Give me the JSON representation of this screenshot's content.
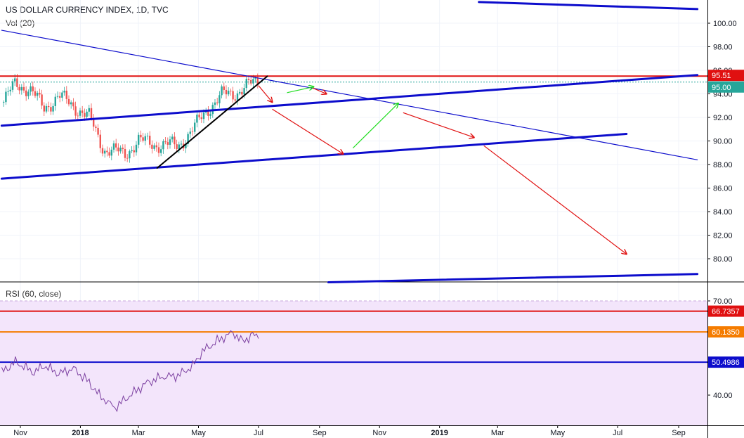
{
  "header": {
    "title": "US DOLLAR CURRENCY INDEX, 1D, TVC",
    "volume_label": "Vol (20)",
    "rsi_label": "RSI (60, close)"
  },
  "colors": {
    "up_candle": "#26a69a",
    "down_candle": "#ef5350",
    "blue_line": "#0d0dcc",
    "red_line": "#e01010",
    "orange_line": "#f57c00",
    "green_arrow": "#22dd22",
    "rsi_line": "#7b3fa0",
    "rsi_fill": "#f3e5fb"
  },
  "chart_data": [
    {
      "type": "candlestick",
      "title": "US DOLLAR CURRENCY INDEX, 1D, TVC",
      "x_axis_ticks": [
        "Nov",
        "2018",
        "Mar",
        "May",
        "Jul",
        "Sep",
        "Nov",
        "2019",
        "Mar",
        "May",
        "Jul",
        "Sep"
      ],
      "y_axis_ticks": [
        80.0,
        82.0,
        84.0,
        86.0,
        88.0,
        90.0,
        92.0,
        94.0,
        96.0,
        98.0,
        100.0
      ],
      "y_range": [
        78.0,
        102.0
      ],
      "price_labels": [
        {
          "value": "95.51",
          "color": "#e01010"
        },
        {
          "value": "95.00",
          "color": "#26a69a"
        }
      ],
      "series_close_approx": [
        {
          "date": "2017-10-15",
          "close": 93.3
        },
        {
          "date": "2017-10-27",
          "close": 94.9
        },
        {
          "date": "2017-11-10",
          "close": 94.4
        },
        {
          "date": "2017-11-25",
          "close": 92.8
        },
        {
          "date": "2017-12-10",
          "close": 93.8
        },
        {
          "date": "2017-12-25",
          "close": 93.0
        },
        {
          "date": "2018-01-10",
          "close": 92.0
        },
        {
          "date": "2018-01-25",
          "close": 89.3
        },
        {
          "date": "2018-02-15",
          "close": 88.9
        },
        {
          "date": "2018-03-01",
          "close": 90.0
        },
        {
          "date": "2018-03-20",
          "close": 89.7
        },
        {
          "date": "2018-04-10",
          "close": 89.6
        },
        {
          "date": "2018-04-25",
          "close": 90.9
        },
        {
          "date": "2018-05-10",
          "close": 92.7
        },
        {
          "date": "2018-05-25",
          "close": 93.9
        },
        {
          "date": "2018-06-05",
          "close": 94.0
        },
        {
          "date": "2018-06-20",
          "close": 94.7
        },
        {
          "date": "2018-07-01",
          "close": 95.0
        }
      ],
      "annotations": {
        "horizontal_lines": [
          {
            "value": 95.51,
            "color": "#e01010"
          },
          {
            "value": 95.0,
            "style": "dotted",
            "color": "#26a69a"
          }
        ],
        "trend_lines": [
          {
            "from": {
              "date": "2017-10-13",
              "value": 99.4
            },
            "to": {
              "date": "2019-09-20",
              "value": 88.4
            },
            "color": "#0d0dcc",
            "weight": "thin"
          },
          {
            "from": {
              "date": "2017-10-13",
              "value": 91.3
            },
            "to": {
              "date": "2019-09-20",
              "value": 95.6
            },
            "color": "#0d0dcc",
            "weight": "thick"
          },
          {
            "from": {
              "date": "2017-10-13",
              "value": 86.8
            },
            "to": {
              "date": "2019-07-10",
              "value": 90.6
            },
            "color": "#0d0dcc",
            "weight": "thick"
          },
          {
            "from": {
              "date": "2019-02-10",
              "value": 101.8
            },
            "to": {
              "date": "2019-09-20",
              "value": 101.2
            },
            "color": "#0d0dcc",
            "weight": "thick"
          },
          {
            "from": {
              "date": "2018-09-10",
              "value": 78.0
            },
            "to": {
              "date": "2019-09-20",
              "value": 78.7
            },
            "color": "#0d0dcc",
            "weight": "thick"
          },
          {
            "from": {
              "date": "2018-03-20",
              "value": 87.7
            },
            "to": {
              "date": "2018-07-10",
              "value": 95.5
            },
            "color": "#000000",
            "weight": "medium"
          }
        ],
        "arrows": [
          {
            "from": {
              "date": "2018-07-01",
              "value": 94.7
            },
            "to": {
              "date": "2018-07-15",
              "value": 93.3
            },
            "color": "#e01010"
          },
          {
            "from": {
              "date": "2018-07-30",
              "value": 94.1
            },
            "to": {
              "date": "2018-08-26",
              "value": 94.6
            },
            "color": "#22dd22"
          },
          {
            "from": {
              "date": "2018-08-25",
              "value": 94.5
            },
            "to": {
              "date": "2018-09-08",
              "value": 94.0
            },
            "color": "#e01010"
          },
          {
            "from": {
              "date": "2018-07-15",
              "value": 92.7
            },
            "to": {
              "date": "2018-09-25",
              "value": 88.9
            },
            "color": "#e01010"
          },
          {
            "from": {
              "date": "2018-10-05",
              "value": 89.4
            },
            "to": {
              "date": "2018-11-20",
              "value": 93.2
            },
            "color": "#22dd22"
          },
          {
            "from": {
              "date": "2018-11-25",
              "value": 92.4
            },
            "to": {
              "date": "2019-02-05",
              "value": 90.3
            },
            "color": "#e01010"
          },
          {
            "from": {
              "date": "2019-02-15",
              "value": 89.6
            },
            "to": {
              "date": "2019-07-10",
              "value": 80.4
            },
            "color": "#e01010"
          }
        ]
      }
    },
    {
      "type": "line",
      "title": "RSI (60, close)",
      "y_axis_ticks": [
        40.0,
        70.0
      ],
      "y_range": [
        32.0,
        71.0
      ],
      "value_labels": [
        {
          "value": "66.7357",
          "color": "#e01010"
        },
        {
          "value": "60.1350",
          "color": "#f57c00"
        },
        {
          "value": "50.4986",
          "color": "#0d0dcc"
        }
      ],
      "levels": [
        66.7357,
        60.135,
        50.4986
      ],
      "series_approx": [
        {
          "date": "2017-10-13",
          "value": 47.3
        },
        {
          "date": "2017-10-27",
          "value": 50.6
        },
        {
          "date": "2017-11-15",
          "value": 47.2
        },
        {
          "date": "2017-11-25",
          "value": 49.4
        },
        {
          "date": "2017-12-10",
          "value": 46.8
        },
        {
          "date": "2017-12-25",
          "value": 48.5
        },
        {
          "date": "2018-01-10",
          "value": 44.0
        },
        {
          "date": "2018-01-20",
          "value": 40.0
        },
        {
          "date": "2018-02-05",
          "value": 36.0
        },
        {
          "date": "2018-02-20",
          "value": 39.8
        },
        {
          "date": "2018-03-10",
          "value": 44.0
        },
        {
          "date": "2018-03-25",
          "value": 45.8
        },
        {
          "date": "2018-04-10",
          "value": 46.2
        },
        {
          "date": "2018-04-25",
          "value": 49.2
        },
        {
          "date": "2018-05-05",
          "value": 53.9
        },
        {
          "date": "2018-05-20",
          "value": 57.2
        },
        {
          "date": "2018-06-05",
          "value": 60.0
        },
        {
          "date": "2018-06-15",
          "value": 57.0
        },
        {
          "date": "2018-06-25",
          "value": 59.3
        },
        {
          "date": "2018-07-01",
          "value": 58.0
        }
      ]
    }
  ]
}
